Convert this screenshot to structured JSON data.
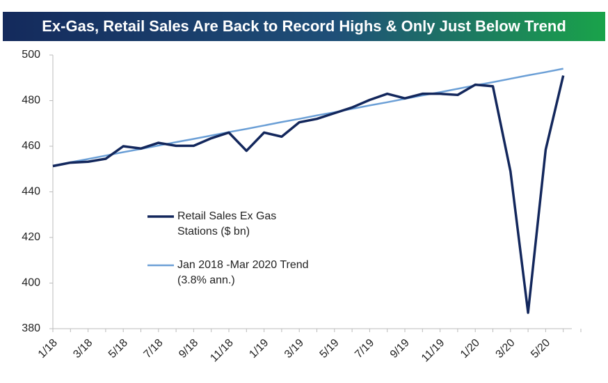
{
  "chart_data": {
    "type": "line",
    "title": "Ex-Gas, Retail Sales Are Back to Record Highs & Only Just Below Trend",
    "categories": [
      "1/18",
      null,
      "3/18",
      null,
      "5/18",
      null,
      "7/18",
      null,
      "9/18",
      null,
      "11/18",
      null,
      "1/19",
      null,
      "3/19",
      null,
      "5/19",
      null,
      "7/19",
      null,
      "9/19",
      null,
      "11/19",
      null,
      "1/20",
      null,
      "3/20",
      null,
      "5/20",
      null
    ],
    "series": [
      {
        "name": "Retail Sales Ex Gas Stations ($ bn)",
        "color": "#13275c",
        "values": [
          451.3,
          452.8,
          453.2,
          454.5,
          460,
          459,
          461.5,
          460.2,
          460.2,
          463.5,
          466,
          458,
          466,
          464.2,
          470.5,
          472,
          474.5,
          477,
          480.3,
          483,
          481,
          483,
          483,
          482.5,
          487,
          486.3,
          449,
          387,
          458.5,
          491
        ]
      },
      {
        "name": "Jan 2018 -Mar 2020 Trend (3.8% ann.)",
        "color": "#6b9fd6",
        "values": [
          451.5,
          453.0,
          454.4,
          455.9,
          457.4,
          458.8,
          460.3,
          461.8,
          463.2,
          464.7,
          466.2,
          467.6,
          469.1,
          470.6,
          472.0,
          473.5,
          474.9,
          476.4,
          477.9,
          479.3,
          480.8,
          482.3,
          483.7,
          485.2,
          486.7,
          488.1,
          489.6,
          491.1,
          492.5,
          494.0
        ]
      }
    ],
    "ylim": [
      380,
      500
    ],
    "yticks": [
      380,
      400,
      420,
      440,
      460,
      480,
      500
    ],
    "grid": false
  }
}
